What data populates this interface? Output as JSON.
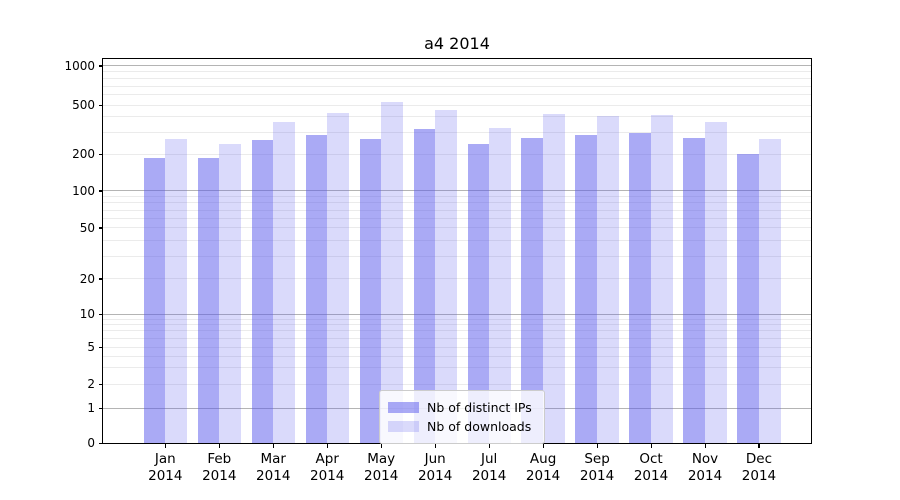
{
  "chart_data": {
    "type": "bar",
    "title": "a4 2014",
    "categories": [
      "Jan",
      "Feb",
      "Mar",
      "Apr",
      "May",
      "Jun",
      "Jul",
      "Aug",
      "Sep",
      "Oct",
      "Nov",
      "Dec"
    ],
    "category_year": "2014",
    "series": [
      {
        "name": "Nb of distinct IPs",
        "color": "rgba(85,85,235,0.5)",
        "values": [
          186,
          186,
          262,
          285,
          266,
          320,
          240,
          270,
          285,
          298,
          270,
          199
        ]
      },
      {
        "name": "Nb of downloads",
        "color": "rgba(85,85,235,0.22)",
        "values": [
          266,
          240,
          362,
          430,
          530,
          455,
          324,
          421,
          407,
          416,
          365,
          265
        ]
      }
    ],
    "xlabel": "",
    "ylabel": "",
    "yscale": "symlog",
    "yticks": [
      0,
      1,
      2,
      5,
      10,
      20,
      50,
      100,
      200,
      500,
      1000
    ],
    "ylim": [
      0,
      1150
    ],
    "grid": {
      "which": "both",
      "major_color": "#b4b4b4",
      "minor_color": "#ebebeb"
    },
    "legend": {
      "position": "lower center"
    },
    "axis_color": "#000000",
    "background": "#ffffff"
  }
}
